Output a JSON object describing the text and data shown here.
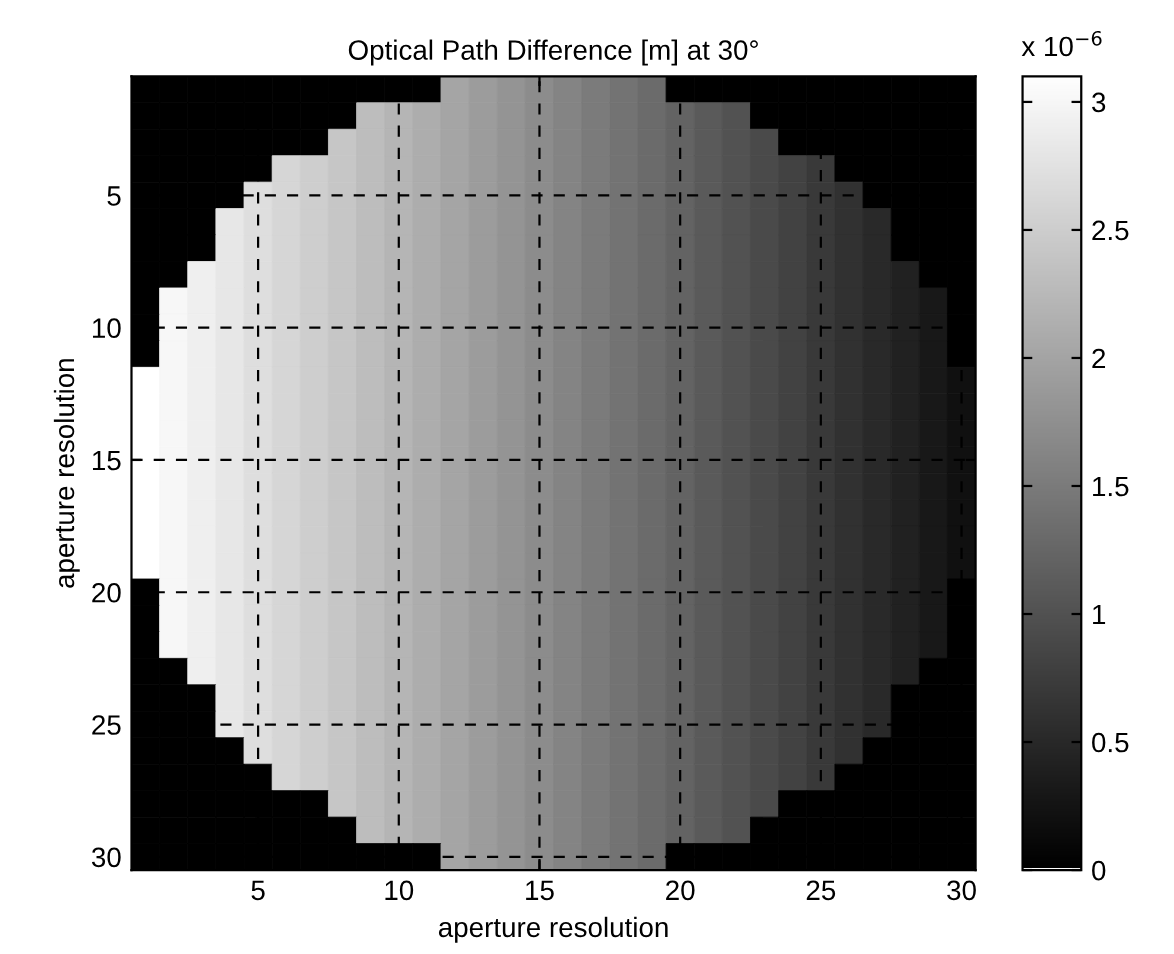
{
  "chart_data": {
    "type": "heatmap",
    "title": "Optical Path Difference [m] at 30°",
    "xlabel": "aperture resolution",
    "ylabel": "aperture resolution",
    "x": [
      1,
      2,
      3,
      4,
      5,
      6,
      7,
      8,
      9,
      10,
      11,
      12,
      13,
      14,
      15,
      16,
      17,
      18,
      19,
      20,
      21,
      22,
      23,
      24,
      25,
      26,
      27,
      28,
      29,
      30
    ],
    "y": [
      1,
      2,
      3,
      4,
      5,
      6,
      7,
      8,
      9,
      10,
      11,
      12,
      13,
      14,
      15,
      16,
      17,
      18,
      19,
      20,
      21,
      22,
      23,
      24,
      25,
      26,
      27,
      28,
      29,
      30
    ],
    "xlim": [
      0.5,
      30.5
    ],
    "ylim": [
      30.5,
      0.5
    ],
    "xticks": [
      5,
      10,
      15,
      20,
      25,
      30
    ],
    "yticks": [
      5,
      10,
      15,
      20,
      25,
      30
    ],
    "clim": [
      0,
      3.1
    ],
    "cticks": [
      0,
      0.5,
      1,
      1.5,
      2,
      2.5,
      3
    ],
    "grid": true,
    "annotations": [
      "x 10$^{−6}$"
    ],
    "cells": [
      [
        0,
        0,
        0,
        0,
        0,
        0,
        0,
        0,
        0,
        0,
        0,
        2.0,
        1.9,
        1.8,
        1.7,
        1.6,
        1.5,
        1.4,
        1.3,
        0,
        0,
        0,
        0,
        0,
        0,
        0,
        0,
        0,
        0,
        0
      ],
      [
        0,
        0,
        0,
        0,
        0,
        0,
        0,
        0,
        2.3,
        2.2,
        2.1,
        2.0,
        1.9,
        1.8,
        1.7,
        1.6,
        1.5,
        1.4,
        1.3,
        1.2,
        1.1,
        1.0,
        0,
        0,
        0,
        0,
        0,
        0,
        0,
        0
      ],
      [
        0,
        0,
        0,
        0,
        0,
        0,
        0,
        2.4,
        2.3,
        2.2,
        2.1,
        2.0,
        1.9,
        1.8,
        1.7,
        1.6,
        1.5,
        1.4,
        1.3,
        1.2,
        1.1,
        1.0,
        0.9,
        0,
        0,
        0,
        0,
        0,
        0,
        0
      ],
      [
        0,
        0,
        0,
        0,
        0,
        2.6,
        2.5,
        2.4,
        2.3,
        2.2,
        2.1,
        2.0,
        1.9,
        1.8,
        1.7,
        1.6,
        1.5,
        1.4,
        1.3,
        1.2,
        1.1,
        1.0,
        0.9,
        0.8,
        0.7,
        0,
        0,
        0,
        0,
        0
      ],
      [
        0,
        0,
        0,
        0,
        2.7,
        2.6,
        2.5,
        2.4,
        2.3,
        2.2,
        2.1,
        2.0,
        1.9,
        1.8,
        1.7,
        1.6,
        1.5,
        1.4,
        1.3,
        1.2,
        1.1,
        1.0,
        0.9,
        0.8,
        0.7,
        0.6,
        0,
        0,
        0,
        0
      ],
      [
        0,
        0,
        0,
        2.8,
        2.7,
        2.6,
        2.5,
        2.4,
        2.3,
        2.2,
        2.1,
        2.0,
        1.9,
        1.8,
        1.7,
        1.6,
        1.5,
        1.4,
        1.3,
        1.2,
        1.1,
        1.0,
        0.9,
        0.8,
        0.7,
        0.6,
        0.5,
        0,
        0,
        0
      ],
      [
        0,
        0,
        0,
        2.8,
        2.7,
        2.6,
        2.5,
        2.4,
        2.3,
        2.2,
        2.1,
        2.0,
        1.9,
        1.8,
        1.7,
        1.6,
        1.5,
        1.4,
        1.3,
        1.2,
        1.1,
        1.0,
        0.9,
        0.8,
        0.7,
        0.6,
        0.5,
        0,
        0,
        0
      ],
      [
        0,
        0,
        2.9,
        2.8,
        2.7,
        2.6,
        2.5,
        2.4,
        2.3,
        2.2,
        2.1,
        2.0,
        1.9,
        1.8,
        1.7,
        1.6,
        1.5,
        1.4,
        1.3,
        1.2,
        1.1,
        1.0,
        0.9,
        0.8,
        0.7,
        0.6,
        0.5,
        0.4,
        0,
        0
      ],
      [
        0,
        3.0,
        2.9,
        2.8,
        2.7,
        2.6,
        2.5,
        2.4,
        2.3,
        2.2,
        2.1,
        2.0,
        1.9,
        1.8,
        1.7,
        1.6,
        1.5,
        1.4,
        1.3,
        1.2,
        1.1,
        1.0,
        0.9,
        0.8,
        0.7,
        0.6,
        0.5,
        0.4,
        0.3,
        0
      ],
      [
        0,
        3.0,
        2.9,
        2.8,
        2.7,
        2.6,
        2.5,
        2.4,
        2.3,
        2.2,
        2.1,
        2.0,
        1.9,
        1.8,
        1.7,
        1.6,
        1.5,
        1.4,
        1.3,
        1.2,
        1.1,
        1.0,
        0.9,
        0.8,
        0.7,
        0.6,
        0.5,
        0.4,
        0.3,
        0
      ],
      [
        0,
        3.0,
        2.9,
        2.8,
        2.7,
        2.6,
        2.5,
        2.4,
        2.3,
        2.2,
        2.1,
        2.0,
        1.9,
        1.8,
        1.7,
        1.6,
        1.5,
        1.4,
        1.3,
        1.2,
        1.1,
        1.0,
        0.9,
        0.8,
        0.7,
        0.6,
        0.5,
        0.4,
        0.3,
        0
      ],
      [
        3.1,
        3.0,
        2.9,
        2.8,
        2.7,
        2.6,
        2.5,
        2.4,
        2.3,
        2.2,
        2.1,
        2.0,
        1.9,
        1.8,
        1.7,
        1.6,
        1.5,
        1.4,
        1.3,
        1.2,
        1.1,
        1.0,
        0.9,
        0.8,
        0.7,
        0.6,
        0.5,
        0.4,
        0.3,
        0.2
      ],
      [
        3.1,
        3.0,
        2.9,
        2.8,
        2.7,
        2.6,
        2.5,
        2.4,
        2.3,
        2.2,
        2.1,
        2.0,
        1.9,
        1.8,
        1.7,
        1.6,
        1.5,
        1.4,
        1.3,
        1.2,
        1.1,
        1.0,
        0.9,
        0.8,
        0.7,
        0.6,
        0.5,
        0.4,
        0.3,
        0.2
      ],
      [
        3.1,
        3.0,
        2.9,
        2.8,
        2.7,
        2.6,
        2.5,
        2.4,
        2.3,
        2.2,
        2.1,
        2.0,
        1.9,
        1.8,
        1.7,
        1.6,
        1.5,
        1.4,
        1.3,
        1.2,
        1.1,
        1.0,
        0.9,
        0.8,
        0.7,
        0.6,
        0.5,
        0.4,
        0.3,
        0.2
      ],
      [
        3.1,
        3.0,
        2.9,
        2.8,
        2.7,
        2.6,
        2.5,
        2.4,
        2.3,
        2.2,
        2.1,
        2.0,
        1.9,
        1.8,
        1.7,
        1.6,
        1.5,
        1.4,
        1.3,
        1.2,
        1.1,
        1.0,
        0.9,
        0.8,
        0.7,
        0.6,
        0.5,
        0.4,
        0.3,
        0.2
      ],
      [
        3.1,
        3.0,
        2.9,
        2.8,
        2.7,
        2.6,
        2.5,
        2.4,
        2.3,
        2.2,
        2.1,
        2.0,
        1.9,
        1.8,
        1.7,
        1.6,
        1.5,
        1.4,
        1.3,
        1.2,
        1.1,
        1.0,
        0.9,
        0.8,
        0.7,
        0.6,
        0.5,
        0.4,
        0.3,
        0.2
      ],
      [
        3.1,
        3.0,
        2.9,
        2.8,
        2.7,
        2.6,
        2.5,
        2.4,
        2.3,
        2.2,
        2.1,
        2.0,
        1.9,
        1.8,
        1.7,
        1.6,
        1.5,
        1.4,
        1.3,
        1.2,
        1.1,
        1.0,
        0.9,
        0.8,
        0.7,
        0.6,
        0.5,
        0.4,
        0.3,
        0.2
      ],
      [
        3.1,
        3.0,
        2.9,
        2.8,
        2.7,
        2.6,
        2.5,
        2.4,
        2.3,
        2.2,
        2.1,
        2.0,
        1.9,
        1.8,
        1.7,
        1.6,
        1.5,
        1.4,
        1.3,
        1.2,
        1.1,
        1.0,
        0.9,
        0.8,
        0.7,
        0.6,
        0.5,
        0.4,
        0.3,
        0.2
      ],
      [
        3.1,
        3.0,
        2.9,
        2.8,
        2.7,
        2.6,
        2.5,
        2.4,
        2.3,
        2.2,
        2.1,
        2.0,
        1.9,
        1.8,
        1.7,
        1.6,
        1.5,
        1.4,
        1.3,
        1.2,
        1.1,
        1.0,
        0.9,
        0.8,
        0.7,
        0.6,
        0.5,
        0.4,
        0.3,
        0.2
      ],
      [
        0,
        3.0,
        2.9,
        2.8,
        2.7,
        2.6,
        2.5,
        2.4,
        2.3,
        2.2,
        2.1,
        2.0,
        1.9,
        1.8,
        1.7,
        1.6,
        1.5,
        1.4,
        1.3,
        1.2,
        1.1,
        1.0,
        0.9,
        0.8,
        0.7,
        0.6,
        0.5,
        0.4,
        0.3,
        0
      ],
      [
        0,
        3.0,
        2.9,
        2.8,
        2.7,
        2.6,
        2.5,
        2.4,
        2.3,
        2.2,
        2.1,
        2.0,
        1.9,
        1.8,
        1.7,
        1.6,
        1.5,
        1.4,
        1.3,
        1.2,
        1.1,
        1.0,
        0.9,
        0.8,
        0.7,
        0.6,
        0.5,
        0.4,
        0.3,
        0
      ],
      [
        0,
        3.0,
        2.9,
        2.8,
        2.7,
        2.6,
        2.5,
        2.4,
        2.3,
        2.2,
        2.1,
        2.0,
        1.9,
        1.8,
        1.7,
        1.6,
        1.5,
        1.4,
        1.3,
        1.2,
        1.1,
        1.0,
        0.9,
        0.8,
        0.7,
        0.6,
        0.5,
        0.4,
        0.3,
        0
      ],
      [
        0,
        0,
        2.9,
        2.8,
        2.7,
        2.6,
        2.5,
        2.4,
        2.3,
        2.2,
        2.1,
        2.0,
        1.9,
        1.8,
        1.7,
        1.6,
        1.5,
        1.4,
        1.3,
        1.2,
        1.1,
        1.0,
        0.9,
        0.8,
        0.7,
        0.6,
        0.5,
        0.4,
        0,
        0
      ],
      [
        0,
        0,
        0,
        2.8,
        2.7,
        2.6,
        2.5,
        2.4,
        2.3,
        2.2,
        2.1,
        2.0,
        1.9,
        1.8,
        1.7,
        1.6,
        1.5,
        1.4,
        1.3,
        1.2,
        1.1,
        1.0,
        0.9,
        0.8,
        0.7,
        0.6,
        0.5,
        0,
        0,
        0
      ],
      [
        0,
        0,
        0,
        2.8,
        2.7,
        2.6,
        2.5,
        2.4,
        2.3,
        2.2,
        2.1,
        2.0,
        1.9,
        1.8,
        1.7,
        1.6,
        1.5,
        1.4,
        1.3,
        1.2,
        1.1,
        1.0,
        0.9,
        0.8,
        0.7,
        0.6,
        0.5,
        0,
        0,
        0
      ],
      [
        0,
        0,
        0,
        0,
        2.7,
        2.6,
        2.5,
        2.4,
        2.3,
        2.2,
        2.1,
        2.0,
        1.9,
        1.8,
        1.7,
        1.6,
        1.5,
        1.4,
        1.3,
        1.2,
        1.1,
        1.0,
        0.9,
        0.8,
        0.7,
        0.6,
        0,
        0,
        0,
        0
      ],
      [
        0,
        0,
        0,
        0,
        0,
        2.6,
        2.5,
        2.4,
        2.3,
        2.2,
        2.1,
        2.0,
        1.9,
        1.8,
        1.7,
        1.6,
        1.5,
        1.4,
        1.3,
        1.2,
        1.1,
        1.0,
        0.9,
        0.8,
        0.7,
        0,
        0,
        0,
        0,
        0
      ],
      [
        0,
        0,
        0,
        0,
        0,
        0,
        0,
        2.4,
        2.3,
        2.2,
        2.1,
        2.0,
        1.9,
        1.8,
        1.7,
        1.6,
        1.5,
        1.4,
        1.3,
        1.2,
        1.1,
        1.0,
        0.9,
        0,
        0,
        0,
        0,
        0,
        0,
        0
      ],
      [
        0,
        0,
        0,
        0,
        0,
        0,
        0,
        0,
        2.3,
        2.2,
        2.1,
        2.0,
        1.9,
        1.8,
        1.7,
        1.6,
        1.5,
        1.4,
        1.3,
        1.2,
        1.1,
        1.0,
        0,
        0,
        0,
        0,
        0,
        0,
        0,
        0
      ],
      [
        0,
        0,
        0,
        0,
        0,
        0,
        0,
        0,
        0,
        0,
        0,
        2.0,
        1.9,
        1.8,
        1.7,
        1.6,
        1.5,
        1.4,
        1.3,
        0,
        0,
        0,
        0,
        0,
        0,
        0,
        0,
        0,
        0,
        0
      ]
    ]
  }
}
